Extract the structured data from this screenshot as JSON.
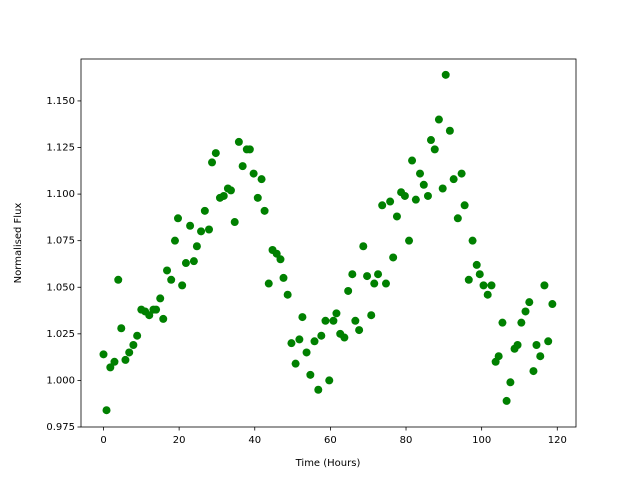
{
  "chart_data": {
    "type": "scatter",
    "xlabel": "Time (Hours)",
    "ylabel": "Normalised Flux",
    "color": "#008000",
    "xlim": [
      -5.95,
      124.95
    ],
    "ylim": [
      0.975,
      1.1725
    ],
    "xticks": [
      0,
      20,
      40,
      60,
      80,
      100,
      120
    ],
    "yticks": [
      0.975,
      {
        "value": 1.0,
        "label": "1.000"
      },
      1.025,
      {
        "value": 1.05,
        "label": "1.050"
      },
      1.075,
      {
        "value": 1.1,
        "label": "1.100"
      },
      1.125,
      {
        "value": 1.15,
        "label": "1.150"
      }
    ],
    "x": [
      0,
      0.8,
      1.8,
      2.9,
      3.9,
      4.7,
      5.8,
      6.8,
      7.9,
      8.9,
      10,
      11,
      12.1,
      13.2,
      13.9,
      15,
      15.8,
      16.8,
      17.9,
      18.9,
      19.7,
      20.8,
      21.8,
      22.9,
      23.9,
      24.7,
      25.8,
      26.8,
      27.9,
      28.7,
      29.7,
      30.8,
      31.8,
      32.9,
      33.7,
      34.7,
      35.8,
      36.8,
      37.9,
      38.7,
      39.7,
      40.8,
      41.8,
      42.6,
      43.7,
      44.7,
      45.8,
      46.8,
      47.6,
      48.7,
      49.7,
      50.8,
      51.8,
      52.6,
      53.7,
      54.7,
      55.8,
      56.8,
      57.6,
      58.7,
      59.7,
      60.8,
      61.6,
      62.6,
      63.7,
      64.7,
      65.8,
      66.6,
      67.6,
      68.7,
      69.7,
      70.8,
      71.6,
      72.6,
      73.7,
      74.7,
      75.8,
      76.6,
      77.6,
      78.7,
      79.7,
      80.8,
      81.6,
      82.6,
      83.7,
      84.7,
      85.8,
      86.6,
      87.6,
      88.7,
      89.7,
      90.5,
      91.6,
      92.6,
      93.7,
      94.7,
      95.5,
      96.6,
      97.6,
      98.7,
      99.5,
      100.5,
      101.6,
      102.6,
      103.7,
      104.5,
      105.5,
      106.6,
      107.6,
      108.7,
      109.5,
      110.5,
      111.6,
      112.6,
      113.7,
      114.5,
      115.5,
      116.6,
      117.6,
      118.7
    ],
    "y": [
      1.014,
      0.984,
      1.007,
      1.01,
      1.054,
      1.028,
      1.011,
      1.015,
      1.019,
      1.024,
      1.038,
      1.037,
      1.035,
      1.038,
      1.038,
      1.044,
      1.033,
      1.059,
      1.054,
      1.075,
      1.087,
      1.051,
      1.063,
      1.083,
      1.064,
      1.072,
      1.08,
      1.091,
      1.081,
      1.117,
      1.122,
      1.098,
      1.099,
      1.103,
      1.102,
      1.085,
      1.128,
      1.115,
      1.124,
      1.124,
      1.111,
      1.098,
      1.108,
      1.091,
      1.052,
      1.07,
      1.068,
      1.065,
      1.055,
      1.046,
      1.02,
      1.009,
      1.022,
      1.034,
      1.015,
      1.003,
      1.021,
      0.995,
      1.024,
      1.032,
      1.0,
      1.032,
      1.036,
      1.025,
      1.023,
      1.048,
      1.057,
      1.032,
      1.027,
      1.072,
      1.056,
      1.035,
      1.052,
      1.057,
      1.094,
      1.052,
      1.096,
      1.066,
      1.088,
      1.101,
      1.099,
      1.075,
      1.118,
      1.097,
      1.111,
      1.105,
      1.099,
      1.129,
      1.124,
      1.14,
      1.103,
      1.164,
      1.134,
      1.108,
      1.087,
      1.111,
      1.094,
      1.054,
      1.075,
      1.062,
      1.057,
      1.051,
      1.046,
      1.051,
      1.01,
      1.013,
      1.031,
      0.989,
      0.999,
      1.017,
      1.019,
      1.031,
      1.037,
      1.042,
      1.005,
      1.019,
      1.013,
      1.051,
      1.021,
      1.041
    ]
  }
}
